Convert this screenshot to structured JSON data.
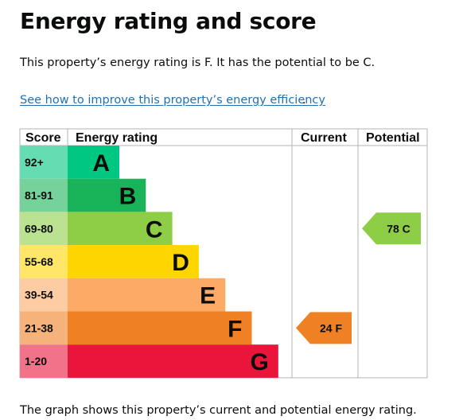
{
  "page": {
    "title": "Energy rating and score",
    "summary": "This property’s energy rating is F. It has the potential to be C.",
    "improve_link": "See how to improve this property’s energy efficiency",
    "improve_link_suffix": ".",
    "footnote": "The graph shows this property’s current and potential energy rating."
  },
  "chart_data": {
    "type": "bar",
    "columns": [
      "Score",
      "Energy rating",
      "Current",
      "Potential"
    ],
    "bands": [
      {
        "letter": "A",
        "range": "92+",
        "color": "#00c781",
        "score_bg": "#66dcb3"
      },
      {
        "letter": "B",
        "range": "81-91",
        "color": "#19b459",
        "score_bg": "#75d29b"
      },
      {
        "letter": "C",
        "range": "69-80",
        "color": "#8dce46",
        "score_bg": "#bbe290"
      },
      {
        "letter": "D",
        "range": "55-68",
        "color": "#ffd500",
        "score_bg": "#ffe666"
      },
      {
        "letter": "E",
        "range": "39-54",
        "color": "#fcaa65",
        "score_bg": "#fdcca3"
      },
      {
        "letter": "F",
        "range": "21-38",
        "color": "#ef8023",
        "score_bg": "#f5b37b"
      },
      {
        "letter": "G",
        "range": "1-20",
        "color": "#e9153b",
        "score_bg": "#f27389"
      }
    ],
    "current": {
      "score": 24,
      "band": "F",
      "label": "24  F"
    },
    "potential": {
      "score": 78,
      "band": "C",
      "label": "78  C"
    },
    "border_color": "#b1b4b6"
  }
}
